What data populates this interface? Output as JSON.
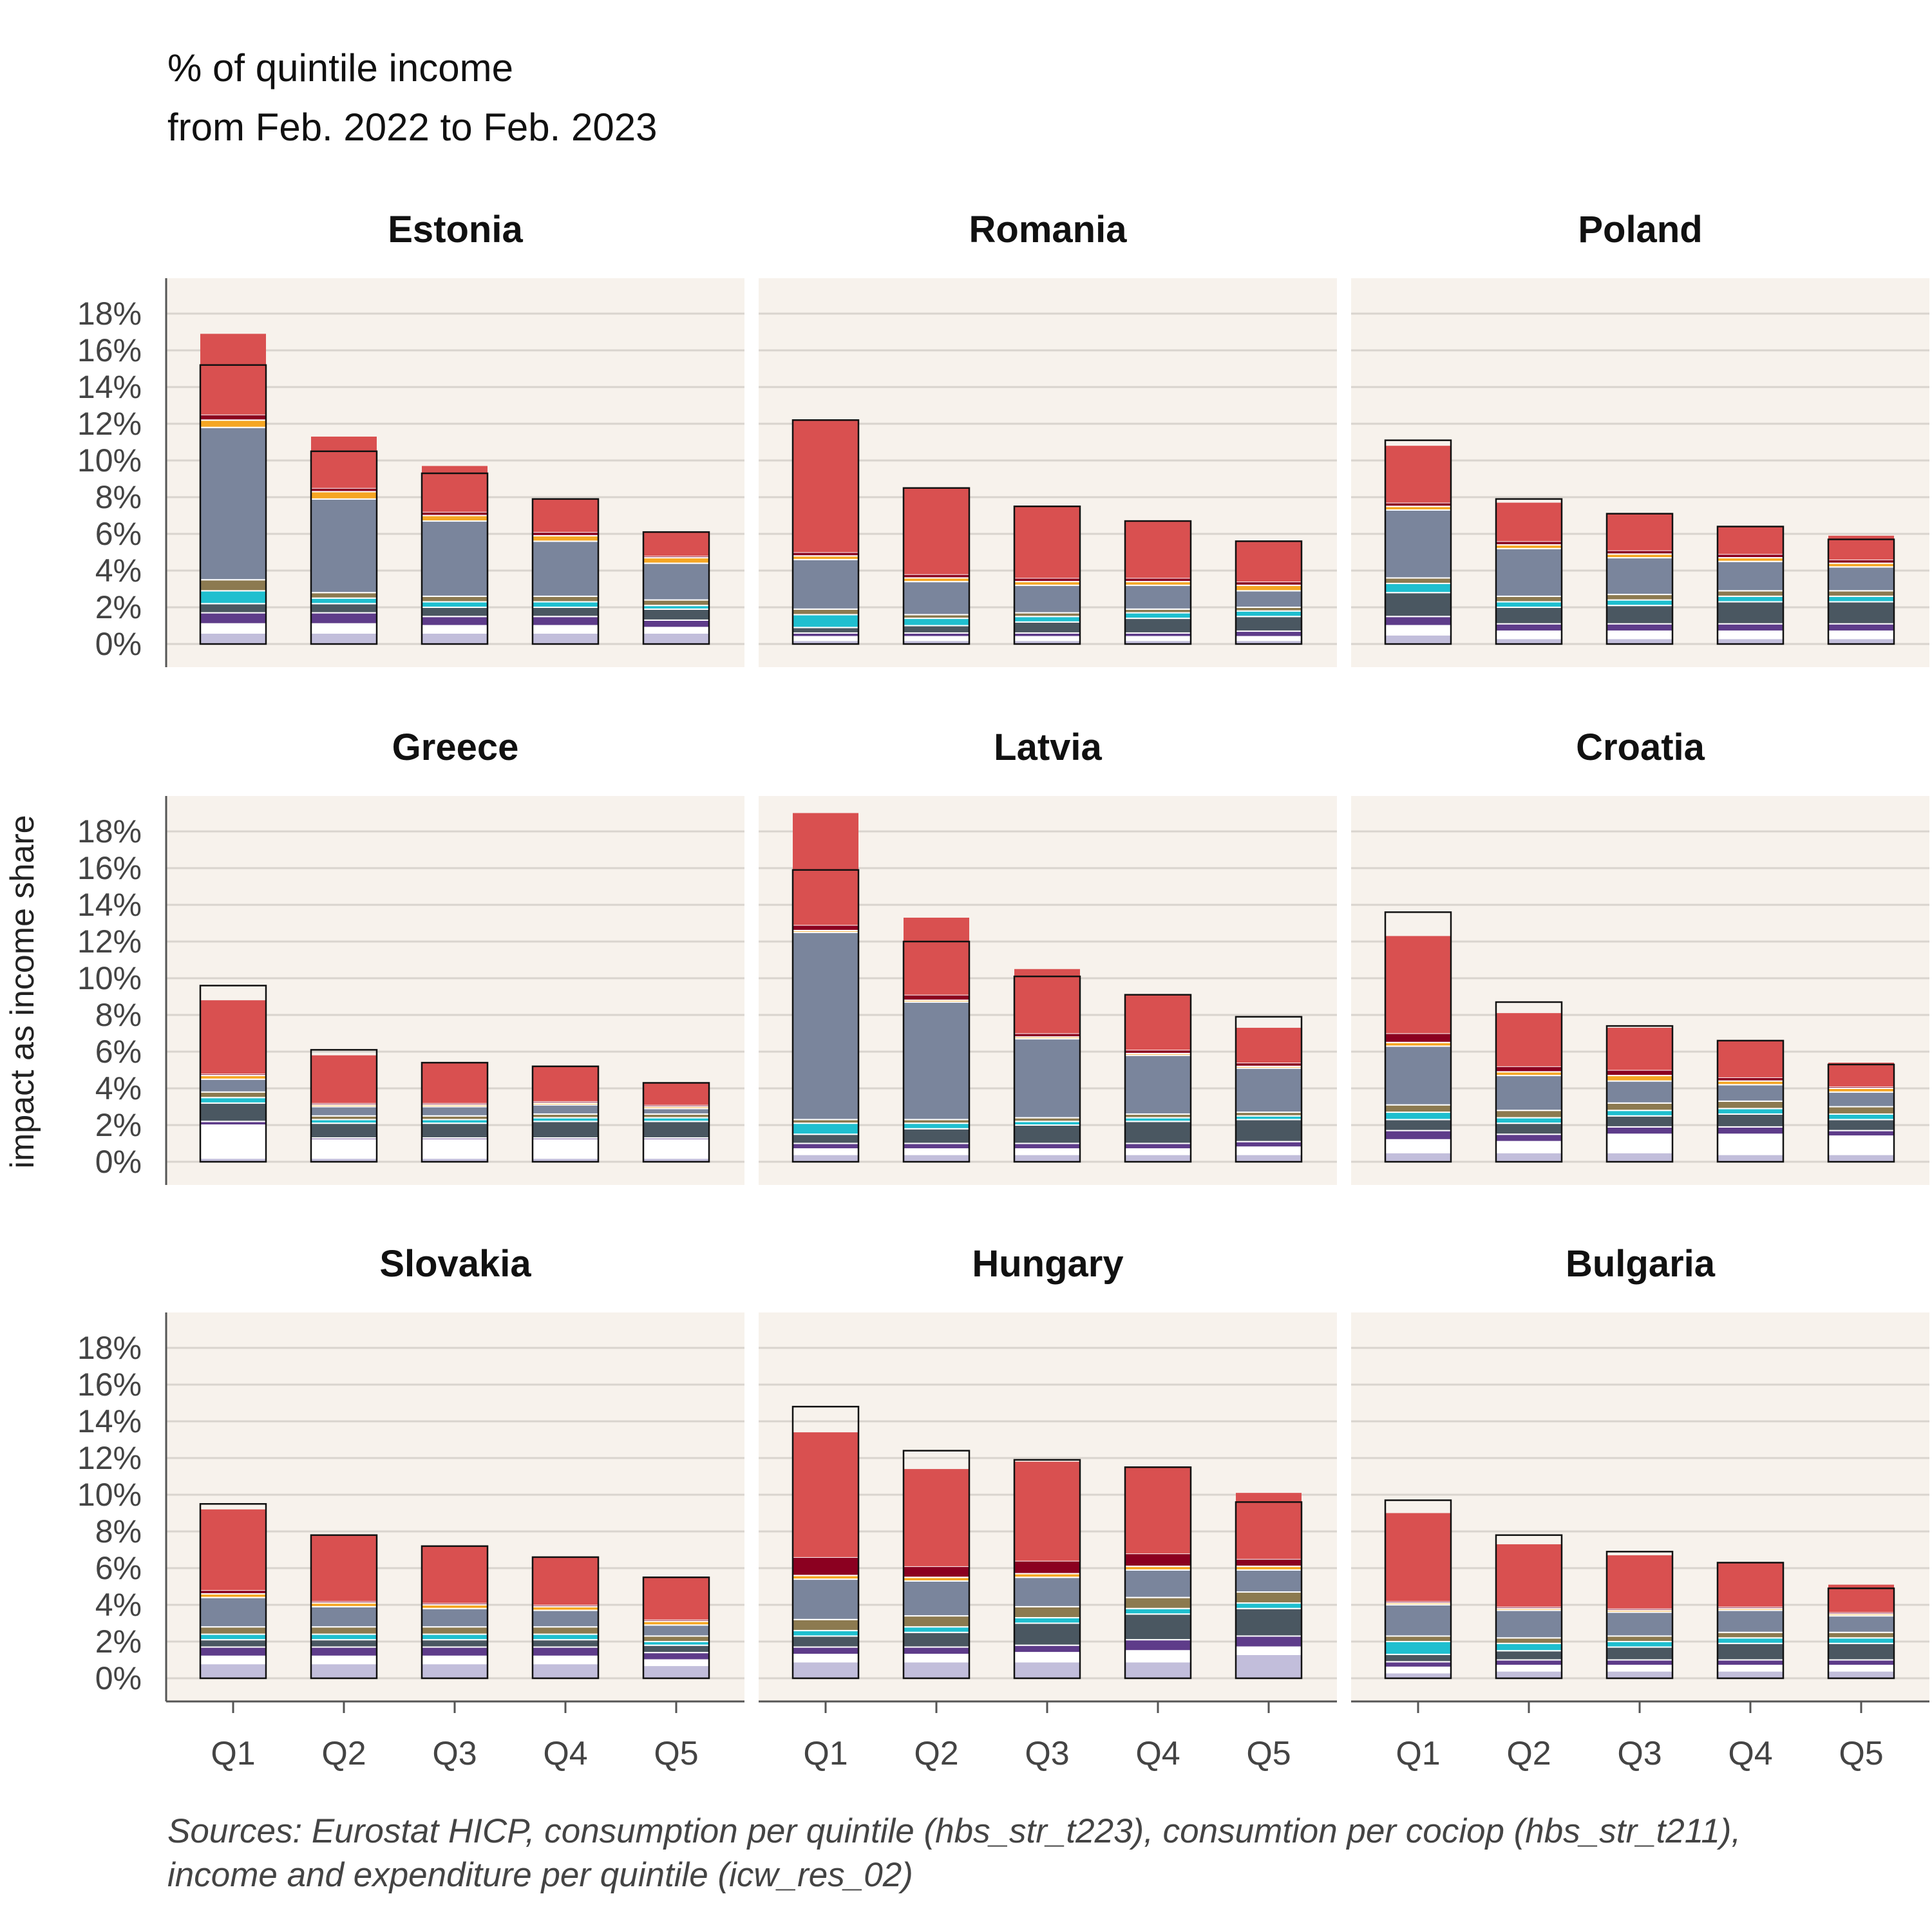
{
  "header": {
    "title": "% of quintile income",
    "subtitle": "from Feb. 2022 to Feb. 2023"
  },
  "footer": {
    "source_line1": "Sources: Eurostat HICP, consumption per quintile (hbs_str_t223), consumtion per cociop (hbs_str_t211),",
    "source_line2": "income and expenditure per quintile (icw_res_02)"
  },
  "chart_data": {
    "type": "bar",
    "stacked": true,
    "ylabel": "impact as income share",
    "categories": [
      "Q1",
      "Q2",
      "Q3",
      "Q4",
      "Q5"
    ],
    "ylim": [
      0,
      18
    ],
    "yticks": [
      "0%",
      "2%",
      "4%",
      "6%",
      "8%",
      "10%",
      "12%",
      "14%",
      "16%",
      "18%"
    ],
    "grid": true,
    "colors": {
      "panel_bg": "#f7f2ec",
      "grid": "#d9d4ce",
      "light_lavender": "#c2bedb",
      "white": "#ffffff",
      "purple": "#5e3c8a",
      "dark_slate": "#4a5761",
      "teal": "#1fbfcf",
      "khaki": "#8c7a50",
      "slate_blue": "#7a859c",
      "orange": "#f5a623",
      "dark_red": "#8b0020",
      "red": "#d95050"
    },
    "segment_order": [
      "light_lavender",
      "white",
      "purple",
      "dark_slate",
      "teal",
      "khaki",
      "slate_blue",
      "orange",
      "dark_red",
      "red"
    ],
    "panels": [
      {
        "name": "Estonia",
        "total": [
          15.2,
          10.5,
          9.3,
          7.9,
          6.1
        ],
        "red_top": [
          16.9,
          11.3,
          9.7,
          7.9,
          6.1
        ],
        "stacks": [
          [
            0.6,
            0.5,
            0.6,
            0.5,
            0.7,
            0.6,
            8.3,
            0.4,
            0.3,
            0
          ],
          [
            0.6,
            0.5,
            0.6,
            0.5,
            0.3,
            0.3,
            5.1,
            0.4,
            0.2,
            0
          ],
          [
            0.6,
            0.4,
            0.5,
            0.5,
            0.3,
            0.3,
            4.1,
            0.3,
            0.2,
            0
          ],
          [
            0.6,
            0.4,
            0.5,
            0.5,
            0.3,
            0.3,
            3.0,
            0.3,
            0.2,
            0
          ],
          [
            0.6,
            0.3,
            0.4,
            0.6,
            0.2,
            0.3,
            2.0,
            0.3,
            0.1,
            0
          ]
        ]
      },
      {
        "name": "Romania",
        "total": [
          12.2,
          8.5,
          7.5,
          6.7,
          5.6
        ],
        "red_top": [
          12.2,
          8.5,
          7.5,
          6.7,
          5.6
        ],
        "stacks": [
          [
            0.2,
            0.2,
            0.2,
            0.3,
            0.7,
            0.3,
            2.7,
            0.2,
            0.2,
            0
          ],
          [
            0.2,
            0.2,
            0.2,
            0.4,
            0.4,
            0.2,
            1.8,
            0.2,
            0.2,
            0
          ],
          [
            0.2,
            0.2,
            0.2,
            0.6,
            0.3,
            0.2,
            1.5,
            0.2,
            0.2,
            0
          ],
          [
            0.2,
            0.2,
            0.2,
            0.8,
            0.3,
            0.2,
            1.3,
            0.2,
            0.2,
            0
          ],
          [
            0.2,
            0.2,
            0.3,
            0.8,
            0.3,
            0.2,
            0.9,
            0.3,
            0.2,
            0
          ]
        ]
      },
      {
        "name": "Poland",
        "total": [
          11.1,
          7.9,
          7.1,
          6.4,
          5.7
        ],
        "red_top": [
          10.8,
          7.7,
          7.1,
          6.4,
          5.9
        ],
        "stacks": [
          [
            0.5,
            0.5,
            0.5,
            1.3,
            0.5,
            0.3,
            3.7,
            0.2,
            0.2,
            0
          ],
          [
            0.3,
            0.4,
            0.4,
            0.9,
            0.3,
            0.3,
            2.6,
            0.2,
            0.2,
            0
          ],
          [
            0.3,
            0.4,
            0.4,
            1.0,
            0.3,
            0.3,
            2.0,
            0.2,
            0.2,
            0
          ],
          [
            0.3,
            0.4,
            0.4,
            1.2,
            0.3,
            0.3,
            1.6,
            0.2,
            0.2,
            0
          ],
          [
            0.3,
            0.4,
            0.4,
            1.2,
            0.3,
            0.3,
            1.3,
            0.2,
            0.2,
            0
          ]
        ]
      },
      {
        "name": "Greece",
        "total": [
          9.6,
          6.1,
          5.4,
          5.2,
          4.3
        ],
        "red_top": [
          8.8,
          5.8,
          5.4,
          5.2,
          4.3
        ],
        "stacks": [
          [
            0.2,
            1.8,
            0.2,
            1.0,
            0.3,
            0.3,
            0.7,
            0.2,
            0.1,
            0
          ],
          [
            0.2,
            1.0,
            0.1,
            0.8,
            0.2,
            0.2,
            0.5,
            0.1,
            0.1,
            0
          ],
          [
            0.2,
            1.0,
            0.1,
            0.8,
            0.2,
            0.2,
            0.5,
            0.1,
            0.1,
            0
          ],
          [
            0.2,
            1.0,
            0.1,
            0.9,
            0.2,
            0.2,
            0.5,
            0.1,
            0.1,
            0
          ],
          [
            0.2,
            1.0,
            0.1,
            0.9,
            0.2,
            0.2,
            0.3,
            0.1,
            0.1,
            0
          ]
        ]
      },
      {
        "name": "Latvia",
        "total": [
          15.9,
          12.0,
          10.1,
          9.1,
          7.9
        ],
        "red_top": [
          19.0,
          13.3,
          10.5,
          9.1,
          7.3
        ],
        "stacks": [
          [
            0.4,
            0.3,
            0.3,
            0.5,
            0.6,
            0.2,
            10.2,
            0.1,
            0.3,
            0
          ],
          [
            0.4,
            0.3,
            0.3,
            0.8,
            0.3,
            0.2,
            6.4,
            0.1,
            0.3,
            0
          ],
          [
            0.4,
            0.3,
            0.3,
            1.0,
            0.2,
            0.2,
            4.3,
            0.1,
            0.2,
            0
          ],
          [
            0.4,
            0.3,
            0.3,
            1.2,
            0.2,
            0.2,
            3.2,
            0.1,
            0.2,
            0
          ],
          [
            0.4,
            0.4,
            0.3,
            1.2,
            0.2,
            0.2,
            2.4,
            0.1,
            0.2,
            0
          ]
        ]
      },
      {
        "name": "Croatia",
        "total": [
          13.6,
          8.7,
          7.4,
          6.6,
          5.3
        ],
        "red_top": [
          12.3,
          8.1,
          7.3,
          6.6,
          5.4
        ],
        "stacks": [
          [
            0.5,
            0.7,
            0.5,
            0.6,
            0.4,
            0.4,
            3.2,
            0.2,
            0.5,
            0
          ],
          [
            0.5,
            0.6,
            0.4,
            0.6,
            0.3,
            0.4,
            1.9,
            0.2,
            0.3,
            0
          ],
          [
            0.5,
            1.0,
            0.4,
            0.6,
            0.3,
            0.4,
            1.2,
            0.3,
            0.3,
            0
          ],
          [
            0.4,
            1.1,
            0.4,
            0.7,
            0.3,
            0.4,
            0.9,
            0.2,
            0.2,
            0
          ],
          [
            0.4,
            1.0,
            0.3,
            0.6,
            0.3,
            0.4,
            0.8,
            0.2,
            0.1,
            0
          ]
        ]
      },
      {
        "name": "Slovakia",
        "total": [
          9.5,
          7.8,
          7.2,
          6.6,
          5.5
        ],
        "red_top": [
          9.2,
          7.8,
          7.2,
          6.6,
          5.5
        ],
        "stacks": [
          [
            0.8,
            0.4,
            0.5,
            0.4,
            0.3,
            0.4,
            1.6,
            0.2,
            0.2,
            0
          ],
          [
            0.8,
            0.4,
            0.5,
            0.4,
            0.3,
            0.4,
            1.1,
            0.2,
            0.1,
            0
          ],
          [
            0.8,
            0.4,
            0.5,
            0.4,
            0.3,
            0.4,
            1.0,
            0.2,
            0.1,
            0
          ],
          [
            0.8,
            0.4,
            0.5,
            0.4,
            0.3,
            0.4,
            0.9,
            0.2,
            0.1,
            0
          ],
          [
            0.7,
            0.3,
            0.4,
            0.4,
            0.2,
            0.3,
            0.6,
            0.2,
            0.1,
            0
          ]
        ]
      },
      {
        "name": "Hungary",
        "total": [
          14.8,
          12.4,
          11.9,
          11.5,
          9.6
        ],
        "red_top": [
          13.4,
          11.4,
          11.8,
          11.5,
          10.1
        ],
        "stacks": [
          [
            0.9,
            0.4,
            0.4,
            0.6,
            0.3,
            0.6,
            2.2,
            0.2,
            1.0,
            0
          ],
          [
            0.9,
            0.4,
            0.4,
            0.8,
            0.3,
            0.6,
            1.9,
            0.2,
            0.6,
            0
          ],
          [
            0.9,
            0.5,
            0.4,
            1.2,
            0.3,
            0.6,
            1.6,
            0.2,
            0.7,
            0
          ],
          [
            0.9,
            0.6,
            0.6,
            1.4,
            0.3,
            0.6,
            1.5,
            0.2,
            0.7,
            0
          ],
          [
            1.3,
            0.4,
            0.6,
            1.5,
            0.3,
            0.6,
            1.2,
            0.2,
            0.4,
            0
          ]
        ]
      },
      {
        "name": "Bulgaria",
        "total": [
          9.7,
          7.8,
          6.9,
          6.3,
          4.9
        ],
        "red_top": [
          9.0,
          7.3,
          6.7,
          6.3,
          5.1
        ],
        "stacks": [
          [
            0.3,
            0.3,
            0.3,
            0.4,
            0.7,
            0.3,
            1.7,
            0.1,
            0.1,
            0
          ],
          [
            0.4,
            0.3,
            0.3,
            0.5,
            0.4,
            0.3,
            1.5,
            0.1,
            0.1,
            0
          ],
          [
            0.4,
            0.3,
            0.3,
            0.7,
            0.3,
            0.3,
            1.3,
            0.1,
            0.1,
            0
          ],
          [
            0.4,
            0.3,
            0.3,
            0.9,
            0.3,
            0.3,
            1.2,
            0.1,
            0.1,
            0
          ],
          [
            0.4,
            0.3,
            0.3,
            0.9,
            0.3,
            0.3,
            0.9,
            0.1,
            0.1,
            0
          ]
        ]
      }
    ]
  }
}
